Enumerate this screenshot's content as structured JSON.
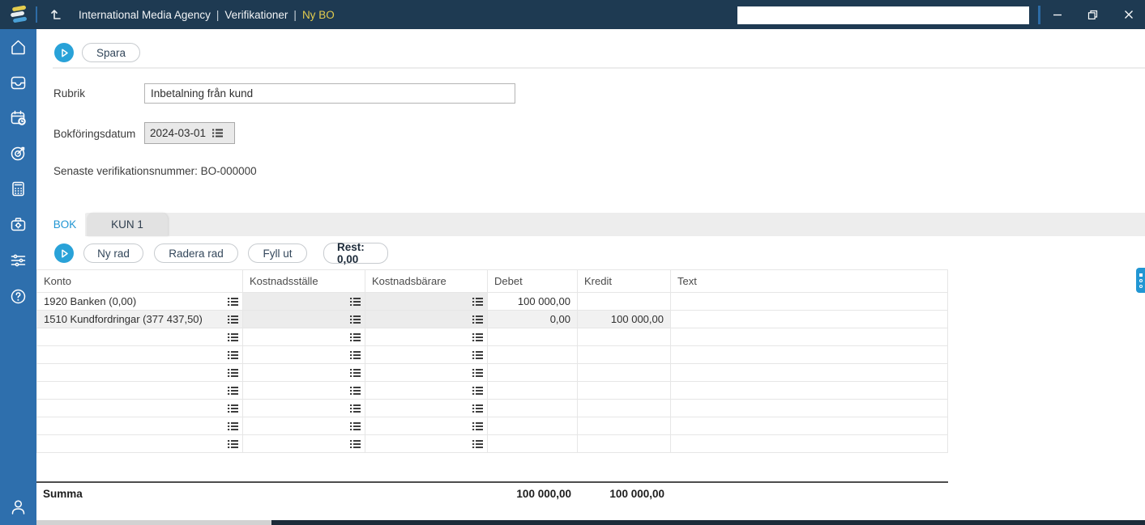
{
  "topbar": {
    "breadcrumb": {
      "company": "International Media Agency",
      "sep1": "|",
      "section": "Verifikationer",
      "sep2": "|",
      "current": "Ny BO"
    },
    "search": {
      "value": "",
      "placeholder": ""
    },
    "window_controls": [
      "minimize-icon",
      "restore-icon",
      "close-icon"
    ],
    "icons": [
      "app-logo",
      "up-level-arrow-icon"
    ]
  },
  "sidebar": {
    "items": [
      "home-icon",
      "inbox-icon",
      "calendar-icon",
      "target-icon",
      "calculator-icon",
      "case-icon",
      "sliders-icon",
      "help-icon"
    ],
    "bottom": "user-icon"
  },
  "form": {
    "save_label": "Spara",
    "rubrik_label": "Rubrik",
    "rubrik_value": "Inbetalning från kund",
    "bokforingsdatum_label": "Bokföringsdatum",
    "bokforingsdatum_value": "2024-03-01",
    "last_verification_text": "Senaste verifikationsnummer: BO-000000"
  },
  "tabs": [
    {
      "label": "BOK",
      "active": true
    },
    {
      "label": "KUN 1",
      "active": false
    }
  ],
  "toolbar": {
    "new_row_label": "Ny rad",
    "delete_row_label": "Radera rad",
    "fill_out_label": "Fyll ut",
    "rest_label": "Rest: 0,00"
  },
  "table": {
    "columns": [
      "Konto",
      "Kostnadsställe",
      "Kostnadsbärare",
      "Debet",
      "Kredit",
      "Text"
    ],
    "rows": [
      {
        "konto": "1920 Banken (0,00)",
        "kostnadsstalle": "",
        "kostnadsbarare": "",
        "debet": "100 000,00",
        "kredit": "",
        "text": "",
        "filled": true,
        "highlight": false
      },
      {
        "konto": "1510 Kundfordringar (377 437,50)",
        "kostnadsstalle": "",
        "kostnadsbarare": "",
        "debet": "0,00",
        "kredit": "100 000,00",
        "text": "",
        "filled": true,
        "highlight": true
      },
      {
        "konto": "",
        "kostnadsstalle": "",
        "kostnadsbarare": "",
        "debet": "",
        "kredit": "",
        "text": "",
        "filled": false,
        "highlight": false
      },
      {
        "konto": "",
        "kostnadsstalle": "",
        "kostnadsbarare": "",
        "debet": "",
        "kredit": "",
        "text": "",
        "filled": false,
        "highlight": false
      },
      {
        "konto": "",
        "kostnadsstalle": "",
        "kostnadsbarare": "",
        "debet": "",
        "kredit": "",
        "text": "",
        "filled": false,
        "highlight": false
      },
      {
        "konto": "",
        "kostnadsstalle": "",
        "kostnadsbarare": "",
        "debet": "",
        "kredit": "",
        "text": "",
        "filled": false,
        "highlight": false
      },
      {
        "konto": "",
        "kostnadsstalle": "",
        "kostnadsbarare": "",
        "debet": "",
        "kredit": "",
        "text": "",
        "filled": false,
        "highlight": false
      },
      {
        "konto": "",
        "kostnadsstalle": "",
        "kostnadsbarare": "",
        "debet": "",
        "kredit": "",
        "text": "",
        "filled": false,
        "highlight": false
      },
      {
        "konto": "",
        "kostnadsstalle": "",
        "kostnadsbarare": "",
        "debet": "",
        "kredit": "",
        "text": "",
        "filled": false,
        "highlight": false
      }
    ],
    "summa": {
      "label": "Summa",
      "debet_total": "100 000,00",
      "kredit_total": "100 000,00"
    }
  },
  "colors": {
    "topbar_bg": "#1e3a52",
    "sidebar_bg": "#2e6fad",
    "accent_cyan": "#29a2d8",
    "active_tab_text": "#2196d3",
    "breadcrumb_current": "#e3cc4e",
    "gray_cell": "#ececec",
    "highlight_row": "#f1f1f1"
  }
}
